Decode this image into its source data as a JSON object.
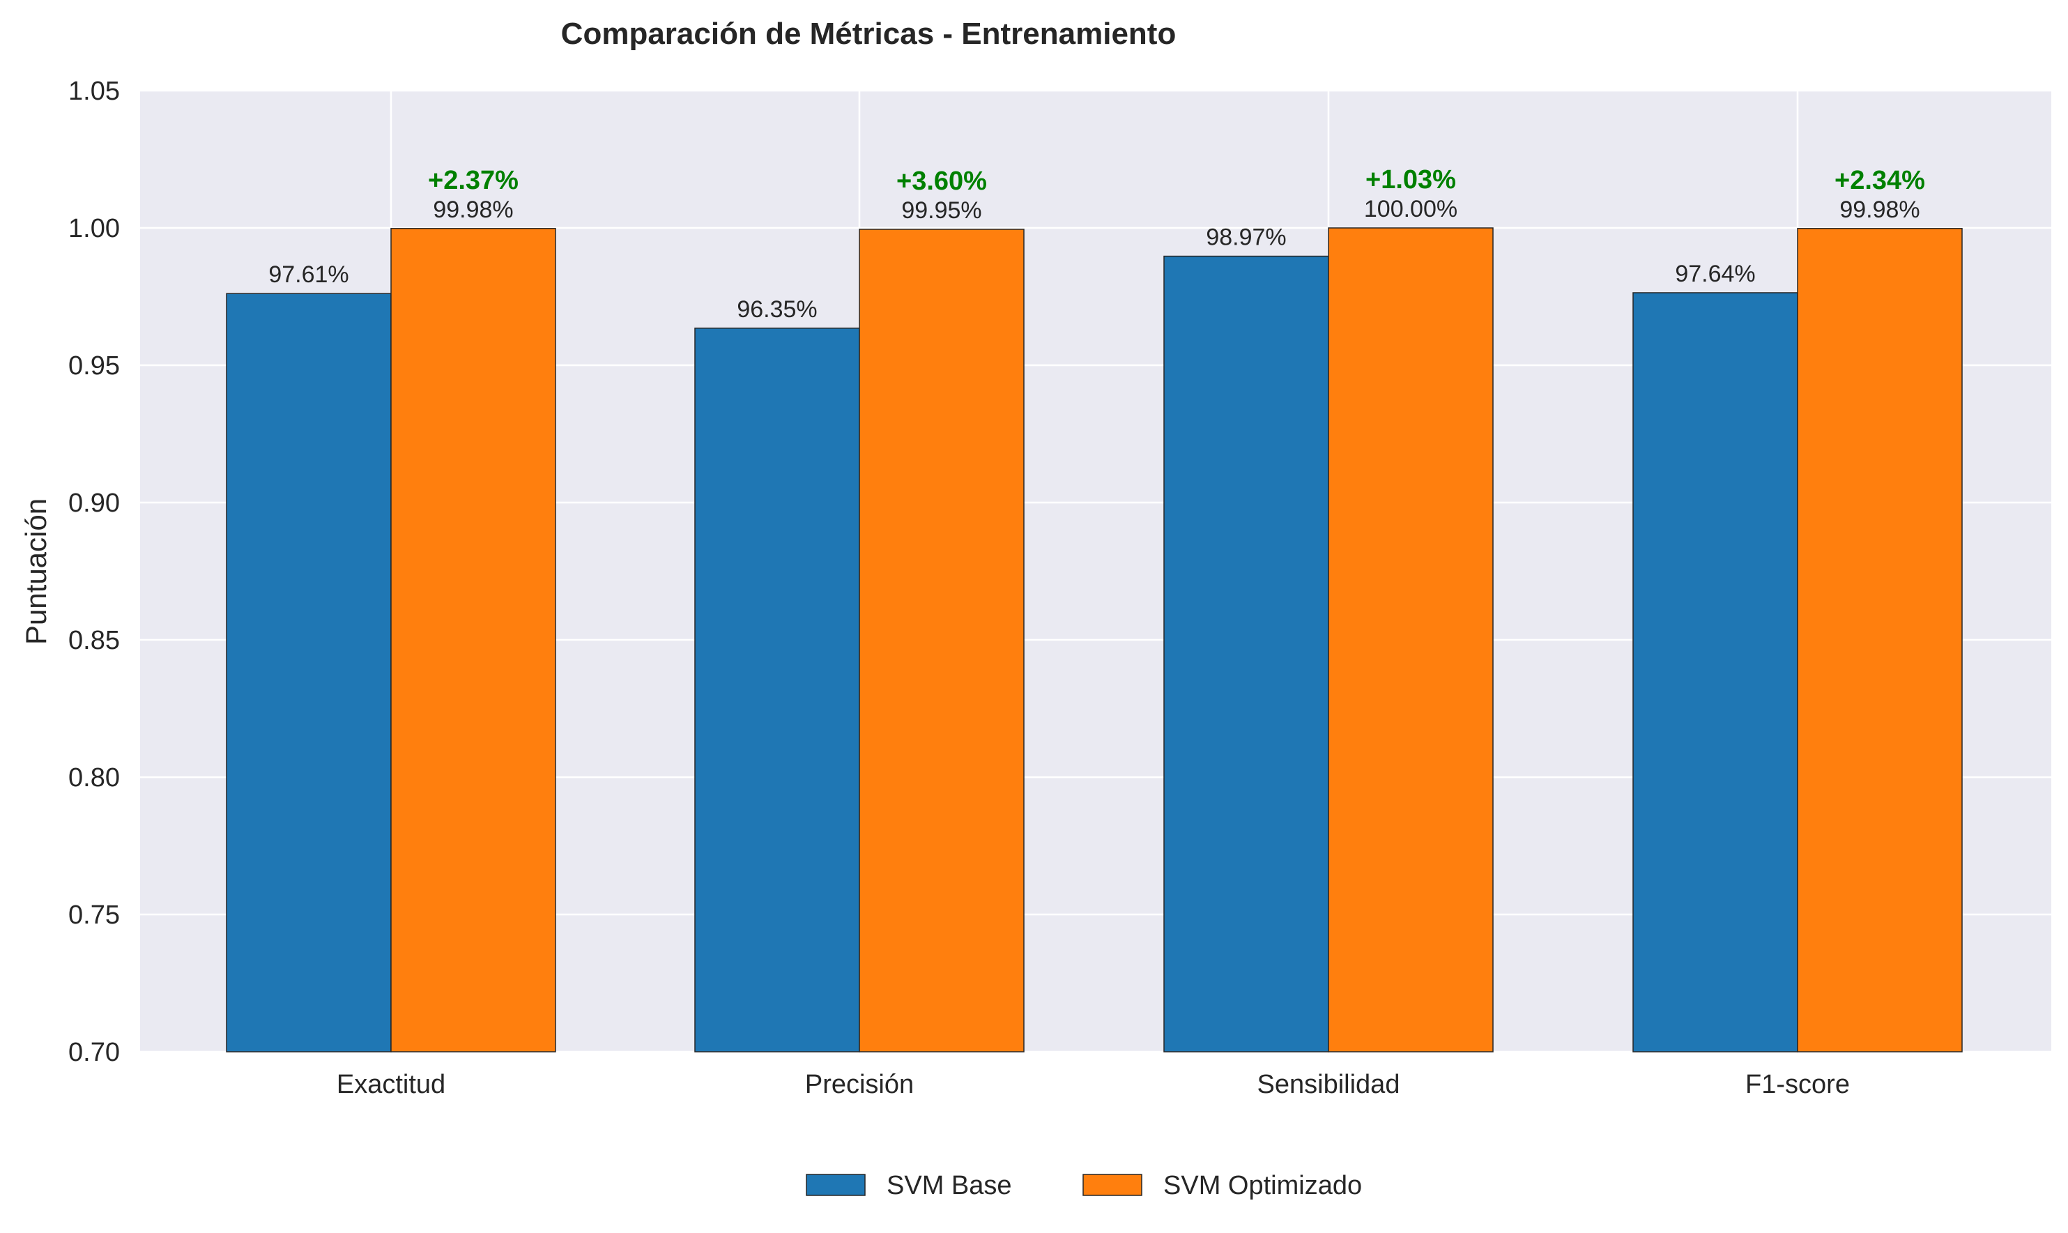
{
  "chart_data": {
    "type": "bar",
    "title": "Comparación de Métricas - Entrenamiento",
    "xlabel": "",
    "ylabel": "Puntuación",
    "ylim": [
      0.7,
      1.05
    ],
    "yticks": [
      "0.70",
      "0.75",
      "0.80",
      "0.85",
      "0.90",
      "0.95",
      "1.00",
      "1.05"
    ],
    "categories": [
      "Exactitud",
      "Precisión",
      "Sensibilidad",
      "F1-score"
    ],
    "series": [
      {
        "name": "SVM Base",
        "color": "#1f77b4",
        "values": [
          0.9761,
          0.9635,
          0.9897,
          0.9764
        ],
        "labels": [
          "97.61%",
          "96.35%",
          "98.97%",
          "97.64%"
        ]
      },
      {
        "name": "SVM Optimizado",
        "color": "#ff7f0e",
        "values": [
          0.9998,
          0.9995,
          1.0,
          0.9998
        ],
        "labels": [
          "99.98%",
          "99.95%",
          "100.00%",
          "99.98%"
        ]
      }
    ],
    "improvements": [
      "+2.37%",
      "+3.60%",
      "+1.03%",
      "+2.34%"
    ],
    "improvement_color": "#008000",
    "background_color": "#eaeaf2",
    "grid": true,
    "legend_position": "bottom-center"
  }
}
